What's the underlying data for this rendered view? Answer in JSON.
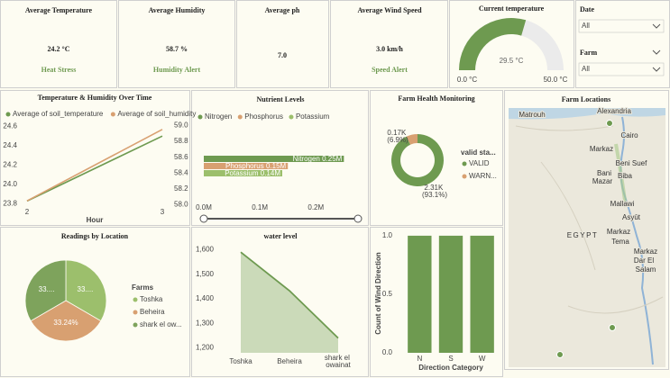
{
  "kpis": [
    {
      "title": "Average Temperature",
      "value": "24.2 °C",
      "status": "Heat Stress"
    },
    {
      "title": "Average Humidity",
      "value": "58.7 %",
      "status": "Humidity Alert"
    },
    {
      "title": "Average ph",
      "value": "7.0"
    },
    {
      "title": "Average Wind Speed",
      "value": "3.0 km/h",
      "status": "Speed Alert"
    }
  ],
  "filters": [
    {
      "label": "Date",
      "value": "All"
    },
    {
      "label": "Farm",
      "value": "All"
    }
  ],
  "chart_data": [
    {
      "type": "gauge",
      "title": "Current temperature",
      "value": 29.5,
      "value_label": "29.5 °C",
      "color": "#6e9a50",
      "track_color": "#ebebeb",
      "ylim": [
        0,
        50
      ],
      "yticks": [
        {
          "value": 0,
          "label": "0.0 °C"
        },
        {
          "value": 50,
          "label": "50.0 °C"
        }
      ]
    },
    {
      "type": "line",
      "title": "Temperature & Humidity Over Time",
      "x_label": "Hour",
      "x": [
        2,
        3
      ],
      "xlim": [
        2,
        3
      ],
      "xticks": [
        2,
        3
      ],
      "series": [
        {
          "name": "Average of soil_temperature",
          "color": "#6e9a50",
          "values": [
            23.83,
            24.5
          ]
        },
        {
          "name": "Average of soil_humidity",
          "color": "#d8a071",
          "values": [
            58.05,
            58.95
          ],
          "axis": "y2"
        }
      ],
      "ylim": [
        23.75,
        24.65
      ],
      "yticks": [
        23.8,
        {
          "value": 24,
          "label": "24.0"
        },
        24.2,
        24.4,
        24.6
      ],
      "y2lim": [
        57.95,
        59.05
      ],
      "y2ticks": [
        {
          "value": 58,
          "label": "58.0"
        },
        58.2,
        58.4,
        58.6,
        58.8,
        {
          "value": 59,
          "label": "59.0"
        }
      ]
    },
    {
      "type": "hbar",
      "title": "Nutrient Levels",
      "categories": [
        "Nitrogen",
        "Phosphorus",
        "Potassium"
      ],
      "values": [
        250000,
        150000,
        140000
      ],
      "value_labels": [
        "Nitrogen 0.25M",
        "Phosphorus 0.15M",
        "Potassium 0.14M"
      ],
      "colors": [
        "#6e9a50",
        "#d8a071",
        "#9cbf6c"
      ],
      "xlim": [
        0,
        280000
      ],
      "xticks": [
        {
          "value": 0,
          "label": "0.0M"
        },
        {
          "value": 100000,
          "label": "0.1M"
        },
        {
          "value": 200000,
          "label": "0.2M"
        }
      ]
    },
    {
      "type": "donut",
      "title": "Farm Health Monitoring",
      "legend_title": "valid sta...",
      "categories": [
        "VALID",
        "WARN..."
      ],
      "values": [
        2310,
        170
      ],
      "value_labels": [
        "2.31K (93.1%)",
        "0.17K (6.9%)"
      ],
      "colors": [
        "#6e9a50",
        "#d8a071"
      ]
    },
    {
      "type": "pie",
      "title": "Readings by Location",
      "legend_title": "Farms",
      "categories": [
        "Toshka",
        "Beheira",
        "shark el ow..."
      ],
      "values": [
        33.38,
        33.24,
        33.38
      ],
      "value_labels": [
        "33....",
        "33.24%",
        "33...."
      ],
      "colors": [
        "#9cbf6c",
        "#d8a071",
        "#7ea35c"
      ]
    },
    {
      "type": "area",
      "title": "water level",
      "categories": [
        "Toshka",
        "Beheira",
        "shark el owainat"
      ],
      "values": [
        1590,
        1433,
        1240
      ],
      "color": "#6e9a50",
      "ylim": [
        1180,
        1620
      ],
      "yticks": [
        {
          "value": 1200,
          "label": "1,200"
        },
        {
          "value": 1300,
          "label": "1,300"
        },
        {
          "value": 1400,
          "label": "1,400"
        },
        {
          "value": 1500,
          "label": "1,500"
        },
        {
          "value": 1600,
          "label": "1,600"
        }
      ]
    },
    {
      "type": "column",
      "x_label": "Direction Category",
      "y_label": "Count of Wind Direction",
      "categories": [
        "N",
        "S",
        "W"
      ],
      "values": [
        1,
        1,
        1
      ],
      "color": "#6e9a50",
      "ylim": [
        0,
        1.03
      ],
      "yticks": [
        {
          "value": 0,
          "label": "0.0"
        },
        {
          "value": 0.5,
          "label": "0.5"
        },
        {
          "value": 1,
          "label": "1.0"
        }
      ]
    }
  ],
  "map": {
    "title": "Farm Locations",
    "labels": [
      "Alexandria",
      "Matrouh",
      "Cairo",
      "Markaz",
      "Beni Suef",
      "Bani",
      "Mazar",
      "Biba",
      "Mallawi",
      "Asyūt",
      "EGYPT",
      "Markaz",
      "Tema",
      "Markaz",
      "Dar El",
      "Salam"
    ]
  }
}
